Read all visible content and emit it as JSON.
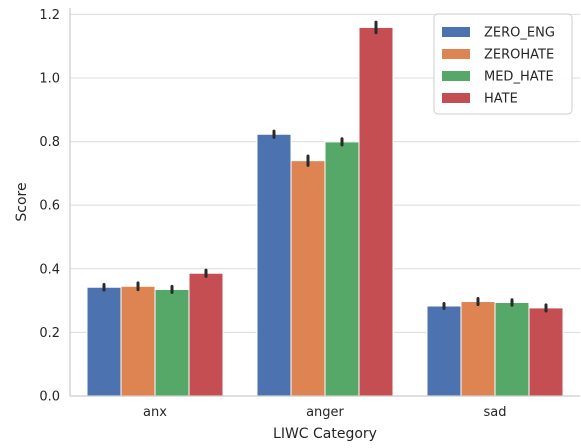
{
  "chart_data": {
    "type": "bar",
    "xlabel": "LIWC Category",
    "ylabel": "Score",
    "categories": [
      "anx",
      "anger",
      "sad"
    ],
    "ylim": [
      0,
      1.22
    ],
    "yticks": [
      "0.0",
      "0.2",
      "0.4",
      "0.6",
      "0.8",
      "1.0",
      "1.2"
    ],
    "grid": "horizontal",
    "legend_position": "top-right",
    "error_bars": true,
    "series": [
      {
        "name": "ZERO_ENG",
        "color": "#4c72b0",
        "values": [
          0.342,
          0.823,
          0.283
        ],
        "err": [
          0.004,
          0.005,
          0.003
        ]
      },
      {
        "name": "ZEROHATE",
        "color": "#dd8452",
        "values": [
          0.345,
          0.74,
          0.297
        ],
        "err": [
          0.006,
          0.01,
          0.005
        ]
      },
      {
        "name": "MED_HATE",
        "color": "#55a868",
        "values": [
          0.335,
          0.799,
          0.294
        ],
        "err": [
          0.005,
          0.005,
          0.004
        ]
      },
      {
        "name": "HATE",
        "color": "#c44e52",
        "values": [
          0.386,
          1.159,
          0.277
        ],
        "err": [
          0.005,
          0.012,
          0.005
        ]
      }
    ]
  }
}
